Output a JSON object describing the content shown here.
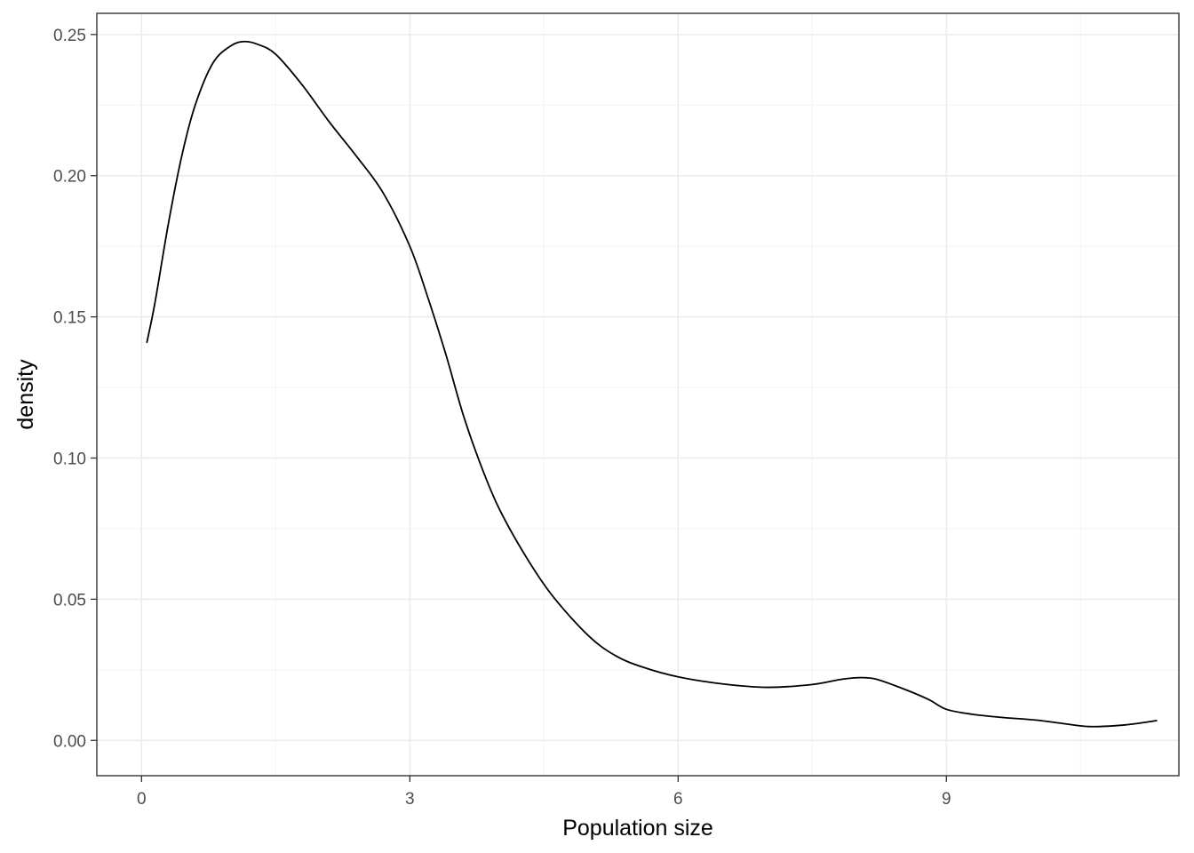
{
  "chart_data": {
    "type": "line",
    "title": "",
    "xlabel": "Population size",
    "ylabel": "density",
    "xlim": [
      -0.5,
      11.6
    ],
    "ylim": [
      -0.0125,
      0.2575
    ],
    "x_ticks": [
      0,
      3,
      6,
      9
    ],
    "x_tick_labels": [
      "0",
      "3",
      "6",
      "9"
    ],
    "x_minor_ticks": [
      1.5,
      4.5,
      7.5,
      10.5
    ],
    "y_ticks": [
      0.0,
      0.05,
      0.1,
      0.15,
      0.2,
      0.25
    ],
    "y_tick_labels": [
      "0.00",
      "0.05",
      "0.10",
      "0.15",
      "0.20",
      "0.25"
    ],
    "y_minor_ticks": [
      0.025,
      0.075,
      0.125,
      0.175,
      0.225
    ],
    "grid": true,
    "legend": "none",
    "colors": {
      "line": "#000000",
      "grid": "#ebebeb",
      "border": "#333333",
      "tick_text": "#4d4d4d",
      "background": "#ffffff"
    },
    "series": [
      {
        "name": "density",
        "x": [
          0.06,
          0.15,
          0.3,
          0.45,
          0.6,
          0.8,
          1.0,
          1.15,
          1.3,
          1.5,
          1.8,
          2.1,
          2.4,
          2.7,
          3.0,
          3.2,
          3.4,
          3.6,
          3.8,
          4.0,
          4.3,
          4.6,
          5.0,
          5.3,
          5.6,
          6.0,
          6.5,
          7.0,
          7.5,
          7.8,
          8.0,
          8.2,
          8.5,
          8.8,
          9.0,
          9.3,
          9.6,
          10.0,
          10.3,
          10.6,
          11.0,
          11.35
        ],
        "y": [
          0.141,
          0.155,
          0.183,
          0.207,
          0.225,
          0.24,
          0.246,
          0.2475,
          0.2465,
          0.243,
          0.232,
          0.219,
          0.207,
          0.194,
          0.175,
          0.157,
          0.137,
          0.115,
          0.097,
          0.082,
          0.065,
          0.051,
          0.037,
          0.03,
          0.026,
          0.0225,
          0.02,
          0.0188,
          0.0198,
          0.0215,
          0.0222,
          0.0218,
          0.0185,
          0.0145,
          0.011,
          0.0092,
          0.0082,
          0.0072,
          0.006,
          0.0049,
          0.0055,
          0.007
        ]
      }
    ]
  }
}
